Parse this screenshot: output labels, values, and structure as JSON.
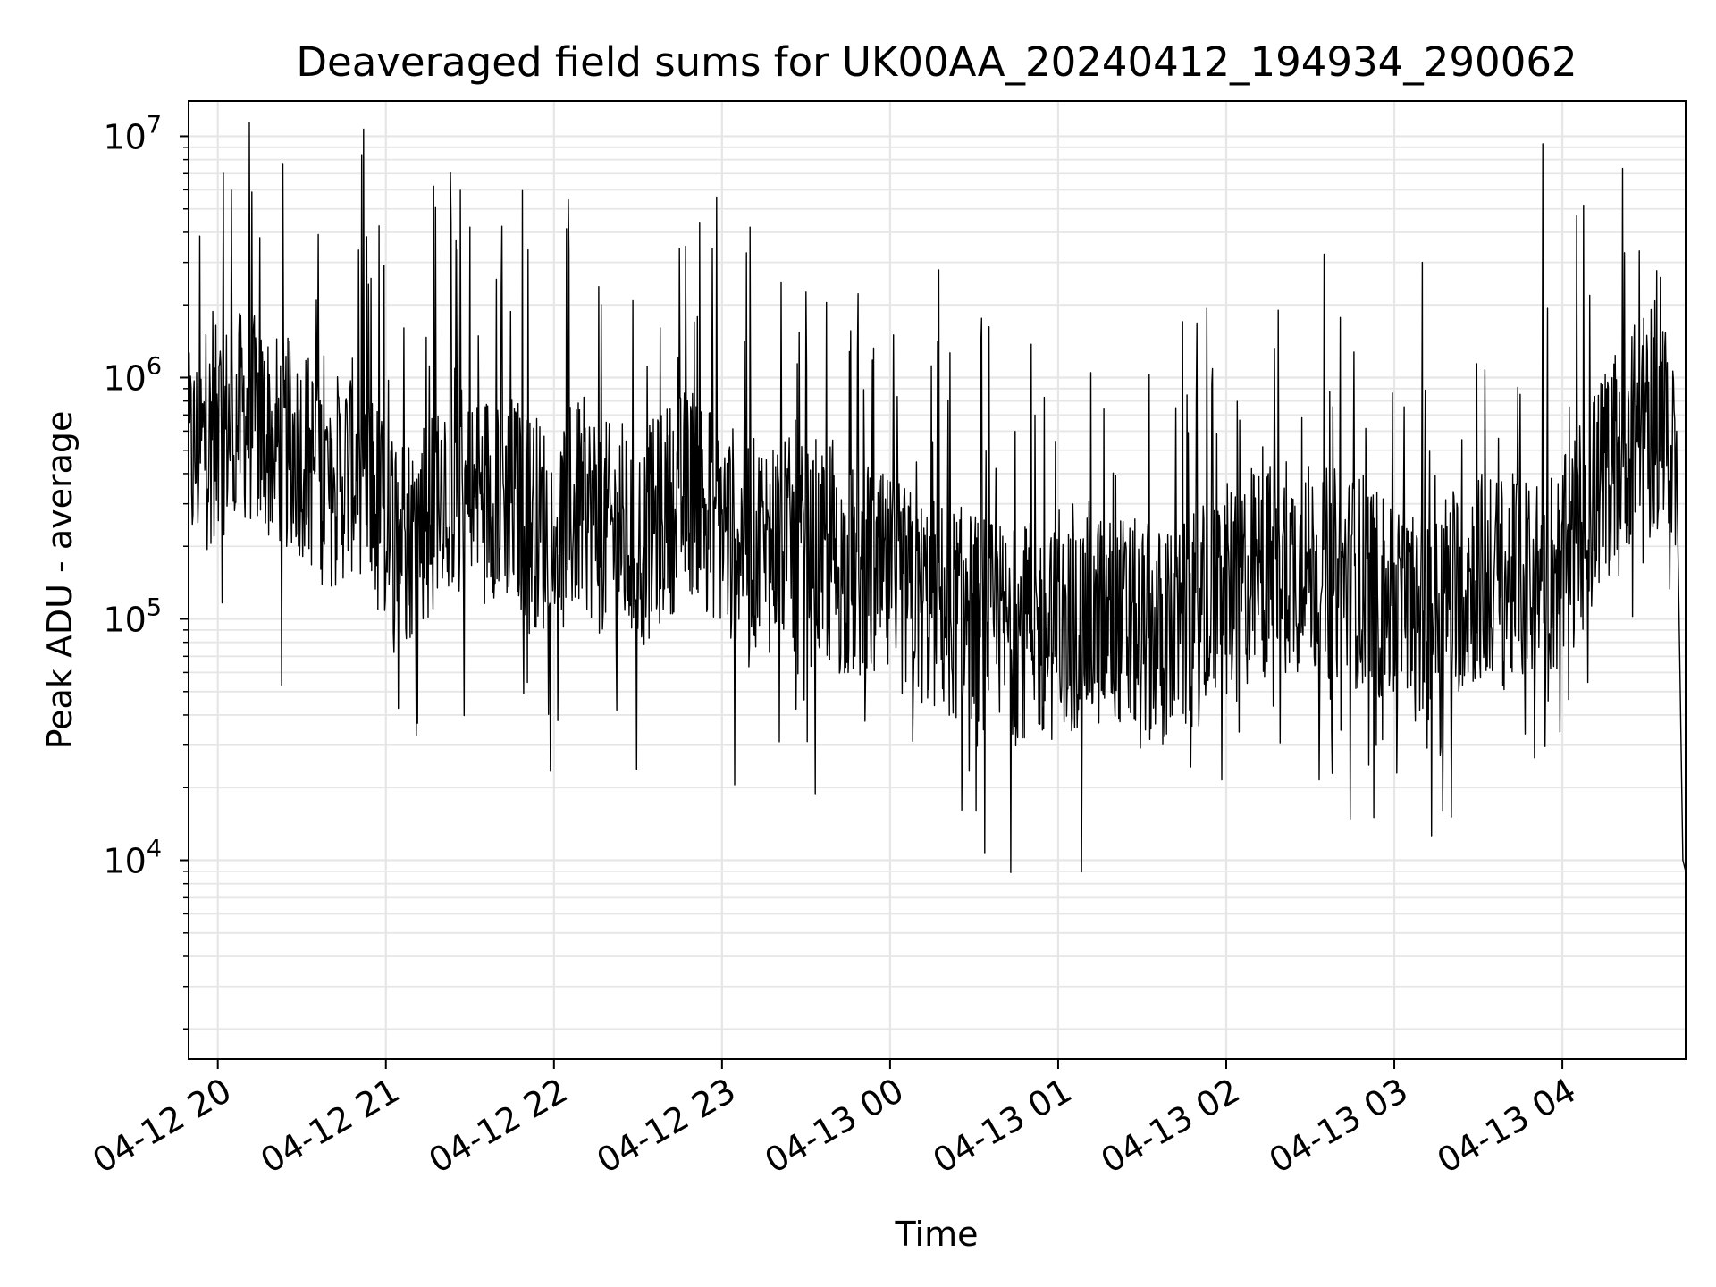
{
  "chart_data": {
    "type": "line",
    "title": "Deaveraged field sums for UK00AA_20240412_194934_290062",
    "xlabel": "Time",
    "ylabel": "Peak ADU - average",
    "yscale": "log",
    "xlim": [
      "2024-04-12 19:49:34",
      "2024-04-13 04:44:00"
    ],
    "ylim": [
      1500,
      14000000
    ],
    "grid": true,
    "line_color": "#000000",
    "x_ticks": [
      "04-12 20",
      "04-12 21",
      "04-12 22",
      "04-12 23",
      "04-13 00",
      "04-13 01",
      "04-13 02",
      "04-13 03",
      "04-13 04"
    ],
    "y_ticks": [
      {
        "base": "10",
        "exp": "4",
        "value": 10000
      },
      {
        "base": "10",
        "exp": "5",
        "value": 100000
      },
      {
        "base": "10",
        "exp": "6",
        "value": 1000000
      },
      {
        "base": "10",
        "exp": "7",
        "value": 10000000
      }
    ],
    "series": [
      {
        "x": [
          "2024-04-12 19:49:34",
          "2024-04-12 20:00",
          "2024-04-12 20:10",
          "2024-04-12 20:20",
          "2024-04-12 20:30",
          "2024-04-12 20:40",
          "2024-04-12 20:50",
          "2024-04-12 21:00",
          "2024-04-12 21:10",
          "2024-04-12 21:20",
          "2024-04-12 21:30",
          "2024-04-12 21:40",
          "2024-04-12 21:50",
          "2024-04-12 22:00",
          "2024-04-12 22:10",
          "2024-04-12 22:20",
          "2024-04-12 22:30",
          "2024-04-12 22:40",
          "2024-04-12 22:50",
          "2024-04-12 23:00",
          "2024-04-12 23:10",
          "2024-04-12 23:20",
          "2024-04-12 23:30",
          "2024-04-12 23:40",
          "2024-04-12 23:50",
          "2024-04-13 00:00",
          "2024-04-13 00:10",
          "2024-04-13 00:20",
          "2024-04-13 00:30",
          "2024-04-13 00:40",
          "2024-04-13 00:50",
          "2024-04-13 01:00",
          "2024-04-13 01:10",
          "2024-04-13 01:20",
          "2024-04-13 01:30",
          "2024-04-13 01:40",
          "2024-04-13 01:50",
          "2024-04-13 02:00",
          "2024-04-13 02:10",
          "2024-04-13 02:20",
          "2024-04-13 02:30",
          "2024-04-13 02:40",
          "2024-04-13 02:50",
          "2024-04-13 03:00",
          "2024-04-13 03:10",
          "2024-04-13 03:20",
          "2024-04-13 03:30",
          "2024-04-13 03:40",
          "2024-04-13 03:50",
          "2024-04-13 04:00",
          "2024-04-13 04:10",
          "2024-04-13 04:20",
          "2024-04-13 04:30",
          "2024-04-13 04:40",
          "2024-04-13 04:44"
        ],
        "y": [
          450000,
          600000,
          700000,
          550000,
          500000,
          350000,
          450000,
          250000,
          220000,
          400000,
          300000,
          350000,
          280000,
          220000,
          300000,
          230000,
          200000,
          280000,
          350000,
          250000,
          200000,
          220000,
          180000,
          160000,
          150000,
          140000,
          120000,
          110000,
          100000,
          90000,
          90000,
          85000,
          95000,
          100000,
          90000,
          85000,
          100000,
          130000,
          150000,
          170000,
          160000,
          150000,
          140000,
          110000,
          100000,
          130000,
          150000,
          140000,
          150000,
          160000,
          300000,
          500000,
          700000,
          600000,
          9000
        ]
      }
    ],
    "spikes": [
      {
        "x": "2024-04-12 20:15",
        "y": 3800000
      },
      {
        "x": "2024-04-12 21:30",
        "y": 4200000
      },
      {
        "x": "2024-04-12 22:47",
        "y": 3500000
      },
      {
        "x": "2024-04-12 22:52",
        "y": 4400000
      },
      {
        "x": "2024-04-12 23:10",
        "y": 4200000
      },
      {
        "x": "2024-04-13 03:10",
        "y": 3000000
      },
      {
        "x": "2024-04-13 03:53",
        "y": 9300000
      },
      {
        "x": "2024-04-13 04:35",
        "y": 2600000
      }
    ]
  }
}
